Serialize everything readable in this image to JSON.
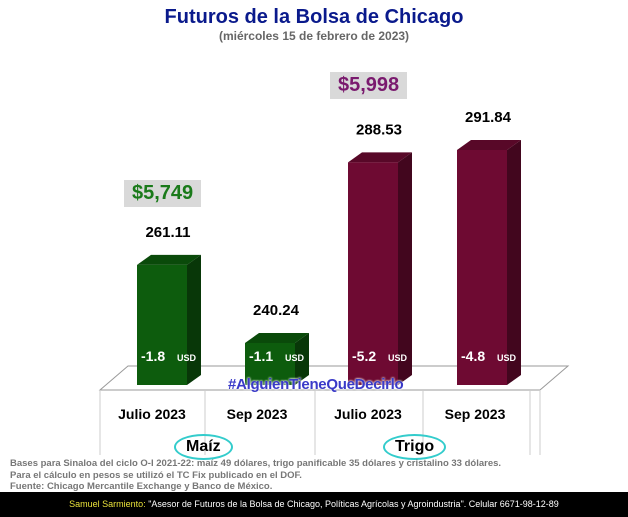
{
  "chart_data": {
    "type": "bar",
    "title": "Futuros de la Bolsa de Chicago",
    "subtitle": "(miércoles 15 de febrero de 2023)",
    "categories": [
      "Julio 2023",
      "Sep 2023",
      "Julio 2023",
      "Sep 2023"
    ],
    "groups": [
      {
        "name": "Maíz",
        "price": "$5,749",
        "color": "#0d5c0d",
        "price_color": "#1a7a1a"
      },
      {
        "name": "Trigo",
        "price": "$5,998",
        "color": "#6e0a32",
        "price_color": "#7a1a6e"
      }
    ],
    "values": [
      261.11,
      240.24,
      288.53,
      291.84
    ],
    "value_labels": [
      "261.11",
      "240.24",
      "288.53",
      "291.84"
    ],
    "group_index": [
      0,
      0,
      1,
      1
    ],
    "changes": [
      "-1.8",
      "-1.1",
      "-5.2",
      "-4.8"
    ],
    "change_unit": "USD",
    "ylim": [
      229,
      295
    ]
  },
  "watermark": "#AlguienTieneQueDecirlo",
  "notes": [
    "Bases para Sinaloa del ciclo O-I 2021-22: maíz 49 dólares, trigo panificable 35 dólares y cristalino 33 dólares.",
    "Para el cálculo en pesos se utilizó el TC Fix publicado en el DOF.",
    "Fuente: Chicago Mercantile Exchange y Banco de México."
  ],
  "footer": {
    "name": "Samuel Sarmiento:",
    "text": " \"Asesor de Futuros de la Bolsa de Chicago, Políticas Agrícolas y Agroindustria\". Celular 6671-98-12-89"
  }
}
